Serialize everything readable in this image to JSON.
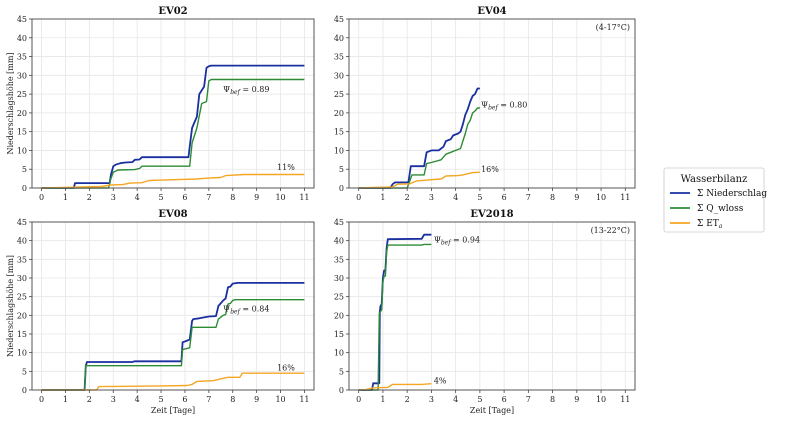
{
  "colors": {
    "niederschlag": "#1a2fa0",
    "qwloss": "#2e8b35",
    "eta": "#f5a623",
    "grid": "#e6e6e6",
    "frame": "#555555"
  },
  "legend": {
    "title": "Wasserbilanz",
    "items": [
      {
        "key": "niederschlag",
        "label": "Σ Niederschlag"
      },
      {
        "key": "qwloss",
        "label": "Σ Q_wloss"
      },
      {
        "key": "eta",
        "label": "Σ ET",
        "sub": "a"
      }
    ]
  },
  "chart_data": [
    {
      "type": "line",
      "title": "EV02",
      "xlabel": "",
      "ylabel": "Niederschlagshöhe [mm]",
      "xlim": [
        -0.4,
        11.4
      ],
      "ylim": [
        0,
        45
      ],
      "xticks": [
        "0",
        "1",
        "2",
        "3",
        "4",
        "5",
        "6",
        "7",
        "8",
        "9",
        "10",
        "11"
      ],
      "yticks": [
        "0",
        "5",
        "10",
        "15",
        "20",
        "25",
        "30",
        "35",
        "40",
        "45"
      ],
      "grid": true,
      "temp_note": "",
      "psi_label": "Ψ",
      "psi_sub": "bef",
      "psi_value": "= 0.89",
      "eta_percent": "11%",
      "series": [
        {
          "name": "Σ Niederschlag",
          "key": "niederschlag",
          "x": [
            0,
            1.35,
            1.4,
            2.85,
            2.9,
            3.0,
            3.1,
            3.3,
            3.5,
            3.8,
            3.9,
            4.1,
            4.2,
            6.15,
            6.2,
            6.3,
            6.5,
            6.6,
            6.8,
            6.9,
            7.0,
            7.1,
            11
          ],
          "y": [
            0,
            0,
            1.3,
            1.3,
            3.5,
            5.8,
            6.2,
            6.6,
            6.8,
            6.9,
            7.5,
            7.6,
            8.2,
            8.2,
            11,
            16,
            19,
            25,
            27,
            32,
            32.4,
            32.6,
            32.6
          ]
        },
        {
          "name": "Σ Q_wloss",
          "key": "qwloss",
          "x": [
            0,
            2.8,
            2.9,
            3.0,
            3.2,
            3.9,
            4.1,
            4.2,
            6.2,
            6.3,
            6.5,
            6.7,
            6.9,
            7.0,
            7.1,
            11
          ],
          "y": [
            0,
            0,
            2.5,
            4.2,
            4.8,
            4.9,
            5.2,
            5.8,
            5.8,
            12,
            16,
            22.5,
            23,
            28.5,
            28.9,
            28.9
          ]
        },
        {
          "name": "Σ ETa",
          "key": "eta",
          "x": [
            0,
            1.4,
            2.5,
            2.9,
            3.4,
            3.7,
            4.2,
            4.5,
            5.0,
            6.5,
            6.9,
            7.5,
            7.7,
            8.5,
            11
          ],
          "y": [
            0,
            0.2,
            0.4,
            0.8,
            0.9,
            1.3,
            1.4,
            2.0,
            2.1,
            2.4,
            2.6,
            2.8,
            3.3,
            3.6,
            3.6
          ]
        }
      ],
      "psi_at": [
        7.6,
        25.5
      ],
      "pct_at": [
        10.6,
        4.5
      ]
    },
    {
      "type": "line",
      "title": "EV04",
      "xlabel": "",
      "ylabel": "",
      "xlim": [
        -0.4,
        11.4
      ],
      "ylim": [
        0,
        45
      ],
      "xticks": [
        "0",
        "1",
        "2",
        "3",
        "4",
        "5",
        "6",
        "7",
        "8",
        "9",
        "10",
        "11"
      ],
      "yticks": [
        "0",
        "5",
        "10",
        "15",
        "20",
        "25",
        "30",
        "35",
        "40",
        "45"
      ],
      "grid": true,
      "temp_note": "(4-17°C)",
      "psi_label": "Ψ",
      "psi_sub": "bef",
      "psi_value": "= 0.80",
      "eta_percent": "16%",
      "series": [
        {
          "name": "Σ Niederschlag",
          "key": "niederschlag",
          "x": [
            0,
            1.3,
            1.4,
            1.5,
            2.05,
            2.15,
            2.7,
            2.8,
            3.0,
            3.3,
            3.5,
            3.6,
            3.8,
            3.9,
            4.1,
            4.2,
            4.3,
            4.4,
            4.5,
            4.6,
            4.7,
            4.8,
            4.9,
            5.0
          ],
          "y": [
            0,
            0,
            1.0,
            1.5,
            1.5,
            5.8,
            5.8,
            9.5,
            10,
            10,
            11,
            12.5,
            13,
            14,
            14.5,
            15,
            17,
            19.5,
            21,
            23,
            24.5,
            25,
            26.5,
            26.5
          ]
        },
        {
          "name": "Σ Q_wloss",
          "key": "qwloss",
          "x": [
            0,
            2.0,
            2.2,
            2.7,
            2.8,
            3.0,
            3.4,
            3.6,
            3.8,
            4.0,
            4.2,
            4.4,
            4.5,
            4.6,
            4.7,
            4.8,
            4.9,
            5.0
          ],
          "y": [
            0,
            0,
            3.5,
            3.5,
            6.5,
            6.8,
            7.5,
            9,
            9.5,
            10,
            10.5,
            14.5,
            17,
            18,
            20,
            20.5,
            21.3,
            21.3
          ]
        },
        {
          "name": "Σ ETa",
          "key": "eta",
          "x": [
            0,
            1.4,
            1.6,
            2.1,
            2.4,
            2.8,
            3.4,
            3.6,
            4.1,
            4.3,
            4.7,
            5.0
          ],
          "y": [
            0,
            0.3,
            1.0,
            1.1,
            1.9,
            2.1,
            2.4,
            3.2,
            3.3,
            3.5,
            4.1,
            4.2
          ]
        }
      ],
      "psi_at": [
        5.05,
        21.5
      ],
      "pct_at": [
        5.05,
        4.0
      ]
    },
    {
      "type": "line",
      "title": "EV08",
      "xlabel": "Zeit [Tage]",
      "ylabel": "Niederschlagshöhe [mm]",
      "xlim": [
        -0.4,
        11.4
      ],
      "ylim": [
        0,
        45
      ],
      "xticks": [
        "0",
        "1",
        "2",
        "3",
        "4",
        "5",
        "6",
        "7",
        "8",
        "9",
        "10",
        "11"
      ],
      "yticks": [
        "0",
        "5",
        "10",
        "15",
        "20",
        "25",
        "30",
        "35",
        "40",
        "45"
      ],
      "grid": true,
      "temp_note": "",
      "psi_label": "Ψ",
      "psi_sub": "bef",
      "psi_value": "= 0.84",
      "eta_percent": "16%",
      "series": [
        {
          "name": "Σ Niederschlag",
          "key": "niederschlag",
          "x": [
            0,
            1.8,
            1.85,
            1.9,
            3.8,
            3.9,
            5.85,
            5.9,
            6.0,
            6.2,
            6.3,
            6.35,
            6.6,
            7.0,
            7.3,
            7.4,
            7.6,
            7.7,
            7.8,
            7.9,
            8.0,
            8.2,
            11
          ],
          "y": [
            0,
            0,
            6.5,
            7.5,
            7.5,
            7.7,
            7.7,
            12.8,
            13,
            13.5,
            18.5,
            19,
            19.2,
            19.7,
            19.8,
            22.5,
            24,
            24.5,
            27.5,
            27.7,
            28.5,
            28.7,
            28.7
          ]
        },
        {
          "name": "Σ Q_wloss",
          "key": "qwloss",
          "x": [
            0,
            1.8,
            1.85,
            5.85,
            5.9,
            6.0,
            6.2,
            6.3,
            7.3,
            7.4,
            7.6,
            7.7,
            7.8,
            7.9,
            8.0,
            8.1,
            11
          ],
          "y": [
            0,
            0,
            6.5,
            6.5,
            10.8,
            11,
            11.3,
            16.8,
            16.8,
            19,
            20,
            20.2,
            23,
            23.2,
            24,
            24.2,
            24.2
          ]
        },
        {
          "name": "Σ ETa",
          "key": "eta",
          "x": [
            0,
            2.3,
            2.4,
            5.0,
            6.1,
            6.3,
            6.5,
            7.2,
            7.5,
            7.8,
            8.3,
            8.4,
            11
          ],
          "y": [
            0,
            0,
            0.9,
            1.1,
            1.2,
            1.5,
            2.3,
            2.5,
            3.0,
            3.4,
            3.4,
            4.5,
            4.5
          ]
        }
      ],
      "psi_at": [
        7.6,
        21.0
      ],
      "pct_at": [
        10.6,
        5.0
      ]
    },
    {
      "type": "line",
      "title": "EV2018",
      "xlabel": "Zeit [Tage]",
      "ylabel": "",
      "xlim": [
        -0.4,
        11.4
      ],
      "ylim": [
        0,
        45
      ],
      "xticks": [
        "0",
        "1",
        "2",
        "3",
        "4",
        "5",
        "6",
        "7",
        "8",
        "9",
        "10",
        "11"
      ],
      "yticks": [
        "0",
        "5",
        "10",
        "15",
        "20",
        "25",
        "30",
        "35",
        "40",
        "45"
      ],
      "grid": true,
      "temp_note": "(13-22°C)",
      "psi_label": "Ψ",
      "psi_sub": "bef",
      "psi_value": "= 0.94",
      "eta_percent": "4%",
      "series": [
        {
          "name": "Σ Niederschlag",
          "key": "niederschlag",
          "x": [
            0,
            0.55,
            0.6,
            0.85,
            0.87,
            0.9,
            0.95,
            1.0,
            1.05,
            1.1,
            1.15,
            1.2,
            2.6,
            2.7,
            3.0
          ],
          "y": [
            0,
            0,
            1.8,
            1.8,
            21,
            22.5,
            23,
            30,
            32,
            32,
            38,
            40.4,
            40.5,
            41.6,
            41.6
          ]
        },
        {
          "name": "Σ Q_wloss",
          "key": "qwloss",
          "x": [
            0,
            0.8,
            0.85,
            0.9,
            0.95,
            1.0,
            1.05,
            1.1,
            1.15,
            1.2,
            2.6,
            2.7,
            3.0
          ],
          "y": [
            0,
            0,
            20.5,
            21,
            21.5,
            29,
            30.5,
            30.5,
            37,
            38.8,
            38.8,
            39.0,
            39.0
          ]
        },
        {
          "name": "Σ ETa",
          "key": "eta",
          "x": [
            0,
            0.3,
            0.6,
            1.2,
            1.4,
            2.6,
            3.0
          ],
          "y": [
            0,
            0.1,
            0.6,
            0.7,
            1.5,
            1.5,
            1.7
          ]
        }
      ],
      "psi_at": [
        3.1,
        39.5
      ],
      "pct_at": [
        3.1,
        1.5
      ]
    }
  ]
}
